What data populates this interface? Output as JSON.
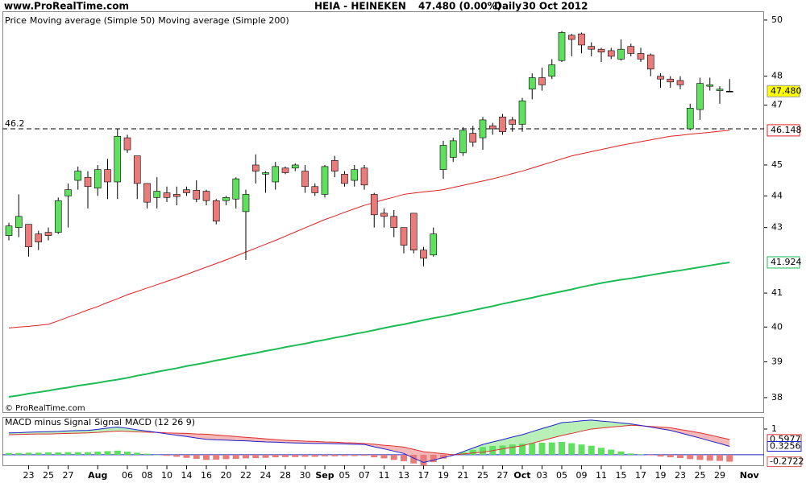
{
  "chart_data": [
    {
      "type": "candlestick",
      "site": "www.ProRealTime.com",
      "title": "HEIA - HEINEKEN",
      "last_quote": "47.480 (0.00%)",
      "period": "Daily",
      "date": "30 Oct 2012",
      "price_label": "Price",
      "copyright": "© ProRealTime.com",
      "categories": [
        null,
        null,
        "23",
        null,
        "25",
        null,
        "27",
        null,
        null,
        "Aug",
        null,
        null,
        "06",
        null,
        "08",
        null,
        "10",
        null,
        "14",
        null,
        "16",
        null,
        "20",
        null,
        "22",
        null,
        "24",
        null,
        "28",
        null,
        "30",
        null,
        "Sep",
        null,
        "05",
        null,
        "07",
        null,
        "11",
        null,
        "13",
        null,
        "17",
        null,
        "19",
        null,
        "21",
        null,
        "25",
        null,
        "27",
        null,
        "Oct",
        null,
        "03",
        null,
        "05",
        null,
        "09",
        null,
        "11",
        null,
        "15",
        null,
        "17",
        null,
        "19",
        null,
        "23",
        null,
        "25",
        null,
        "29",
        null
      ],
      "next_month_label": "Nov",
      "open": [
        42.75,
        43.0,
        43.1,
        42.8,
        42.85,
        42.85,
        44.0,
        44.5,
        44.6,
        44.25,
        44.85,
        44.45,
        45.9,
        45.3,
        44.4,
        43.95,
        44.1,
        44.05,
        44.2,
        44.18,
        44.15,
        43.85,
        43.85,
        43.9,
        43.5,
        45.0,
        44.7,
        44.45,
        44.9,
        44.9,
        44.8,
        44.3,
        44.05,
        45.15,
        44.7,
        44.5,
        44.9,
        44.05,
        43.45,
        43.35,
        43.0,
        43.45,
        42.3,
        42.15,
        44.85,
        45.25,
        45.4,
        46.05,
        45.9,
        46.3,
        46.6,
        46.5,
        46.35,
        47.55,
        47.95,
        48.0,
        48.55,
        49.45,
        49.5,
        49.05,
        48.95,
        48.9,
        48.6,
        49.05,
        48.8,
        48.75,
        48.0,
        47.9,
        47.85,
        46.2,
        46.85,
        47.65,
        47.5,
        47.48
      ],
      "high": [
        43.15,
        44.05,
        43.1,
        42.9,
        43.0,
        43.95,
        44.4,
        44.95,
        44.8,
        45.0,
        45.2,
        46.2,
        46.0,
        45.3,
        44.4,
        44.6,
        44.3,
        44.3,
        44.3,
        44.5,
        44.2,
        43.9,
        44.0,
        44.6,
        44.2,
        45.35,
        44.8,
        45.1,
        44.95,
        45.05,
        45.0,
        44.4,
        45.0,
        45.3,
        44.8,
        45.0,
        45.0,
        44.1,
        43.6,
        43.55,
        43.0,
        43.45,
        42.4,
        43.0,
        45.8,
        45.9,
        46.25,
        46.3,
        46.6,
        46.4,
        46.7,
        46.6,
        47.25,
        48.1,
        48.3,
        48.6,
        49.6,
        49.5,
        49.55,
        49.2,
        49.0,
        49.0,
        49.3,
        49.15,
        49.0,
        48.8,
        48.1,
        48.0,
        48.0,
        47.05,
        47.95,
        47.95,
        47.65,
        47.9
      ],
      "low": [
        42.6,
        42.7,
        42.1,
        42.3,
        42.6,
        42.8,
        43.0,
        44.2,
        43.6,
        44.0,
        43.9,
        43.9,
        45.4,
        43.9,
        43.6,
        43.6,
        43.8,
        43.7,
        44.0,
        43.8,
        43.7,
        43.1,
        43.7,
        43.6,
        42.0,
        44.4,
        44.1,
        44.2,
        44.7,
        44.8,
        44.1,
        44.0,
        43.95,
        44.6,
        44.3,
        44.3,
        44.2,
        43.0,
        43.0,
        42.7,
        42.2,
        42.2,
        41.8,
        42.1,
        44.55,
        45.1,
        45.3,
        45.6,
        45.5,
        46.0,
        46.0,
        46.1,
        46.1,
        47.2,
        47.5,
        47.9,
        48.5,
        48.7,
        48.8,
        48.7,
        48.5,
        48.6,
        48.55,
        48.7,
        48.5,
        48.0,
        47.6,
        47.6,
        47.55,
        46.15,
        46.5,
        47.5,
        47.05,
        47.45
      ],
      "close": [
        43.05,
        43.35,
        42.4,
        42.55,
        42.75,
        43.85,
        44.2,
        44.8,
        44.3,
        44.85,
        44.45,
        45.95,
        45.5,
        44.4,
        43.8,
        44.15,
        43.95,
        43.98,
        44.1,
        43.9,
        43.85,
        43.2,
        43.95,
        44.55,
        44.05,
        44.8,
        44.75,
        44.95,
        44.75,
        45.0,
        44.3,
        44.1,
        44.95,
        44.8,
        44.4,
        44.85,
        44.35,
        43.4,
        43.35,
        43.0,
        42.45,
        42.3,
        42.05,
        42.8,
        45.65,
        45.8,
        46.15,
        45.75,
        46.5,
        46.2,
        46.1,
        46.35,
        47.15,
        47.95,
        47.7,
        48.4,
        49.55,
        49.3,
        49.1,
        48.95,
        48.85,
        48.7,
        48.95,
        48.8,
        48.6,
        48.25,
        47.9,
        47.8,
        47.7,
        46.9,
        47.75,
        47.7,
        47.55,
        47.48
      ],
      "last_value_label": "47.480",
      "up_color": "#5fe05f",
      "down_color": "#ea7b7b",
      "last_tag_color": "#ffff00",
      "series": [
        {
          "name": "Moving average (Simple 50)",
          "color": "#e02020",
          "values": [
            39.97,
            40.0,
            40.02,
            40.05,
            40.08,
            40.18,
            40.29,
            40.39,
            40.5,
            40.6,
            40.72,
            40.83,
            40.95,
            41.05,
            41.15,
            41.25,
            41.35,
            41.45,
            41.56,
            41.67,
            41.78,
            41.89,
            42.0,
            42.12,
            42.24,
            42.36,
            42.48,
            42.6,
            42.73,
            42.86,
            42.99,
            43.12,
            43.25,
            43.36,
            43.48,
            43.59,
            43.7,
            43.79,
            43.88,
            43.96,
            44.05,
            44.09,
            44.13,
            44.16,
            44.2,
            44.27,
            44.34,
            44.41,
            44.48,
            44.55,
            44.63,
            44.72,
            44.8,
            44.9,
            45.0,
            45.1,
            45.2,
            45.3,
            45.37,
            45.44,
            45.51,
            45.58,
            45.65,
            45.71,
            45.77,
            45.83,
            45.89,
            45.95,
            45.98,
            46.02,
            46.05,
            46.08,
            46.12,
            46.148
          ]
        },
        {
          "name": "Moving average (Simple 200)",
          "color": "#1cbb55",
          "values": [
            38.02,
            38.06,
            38.11,
            38.15,
            38.19,
            38.24,
            38.28,
            38.33,
            38.37,
            38.41,
            38.46,
            38.5,
            38.55,
            38.61,
            38.66,
            38.72,
            38.77,
            38.82,
            38.88,
            38.93,
            38.98,
            39.04,
            39.09,
            39.15,
            39.2,
            39.25,
            39.31,
            39.36,
            39.42,
            39.47,
            39.52,
            39.58,
            39.63,
            39.69,
            39.74,
            39.8,
            39.85,
            39.91,
            39.97,
            40.03,
            40.08,
            40.14,
            40.2,
            40.26,
            40.31,
            40.37,
            40.43,
            40.49,
            40.55,
            40.61,
            40.68,
            40.74,
            40.8,
            40.86,
            40.93,
            40.99,
            41.05,
            41.11,
            41.18,
            41.24,
            41.3,
            41.35,
            41.4,
            41.44,
            41.49,
            41.54,
            41.59,
            41.64,
            41.68,
            41.73,
            41.78,
            41.83,
            41.88,
            41.924
          ]
        }
      ],
      "hline": 46.2,
      "log_scale": true,
      "ylim": [
        37.6,
        50.32
      ],
      "yticks": [
        38,
        39,
        40,
        41,
        43,
        44,
        45,
        47,
        48,
        50
      ]
    },
    {
      "type": "macd",
      "up_color": "#5fe05f",
      "down_color": "#ea7b7b",
      "series": [
        {
          "name": "MACD minus Signal",
          "color": "#e05050",
          "values": [
            0.07,
            0.07,
            0.08,
            0.08,
            0.09,
            0.09,
            0.1,
            0.1,
            0.1,
            0.12,
            0.14,
            0.16,
            0.12,
            0.08,
            0.04,
            0.0,
            -0.04,
            -0.08,
            -0.12,
            -0.16,
            -0.2,
            -0.19,
            -0.17,
            -0.16,
            -0.14,
            -0.13,
            -0.12,
            -0.1,
            -0.09,
            -0.09,
            -0.08,
            -0.08,
            -0.06,
            -0.06,
            -0.05,
            -0.05,
            -0.04,
            -0.1,
            -0.14,
            -0.2,
            -0.25,
            -0.34,
            -0.42,
            -0.29,
            -0.15,
            -0.02,
            0.09,
            0.19,
            0.3,
            0.34,
            0.36,
            0.4,
            0.43,
            0.45,
            0.47,
            0.48,
            0.5,
            0.45,
            0.4,
            0.35,
            0.27,
            0.2,
            0.13,
            0.05,
            0.01,
            -0.02,
            -0.07,
            -0.1,
            -0.13,
            -0.17,
            -0.2,
            -0.23,
            -0.24,
            -0.2722
          ]
        },
        {
          "name": "Signal",
          "color": "#e03030",
          "values": [
            0.78,
            0.79,
            0.8,
            0.81,
            0.81,
            0.82,
            0.83,
            0.84,
            0.85,
            0.87,
            0.9,
            0.92,
            0.91,
            0.89,
            0.88,
            0.87,
            0.85,
            0.84,
            0.83,
            0.81,
            0.8,
            0.77,
            0.74,
            0.71,
            0.68,
            0.65,
            0.62,
            0.59,
            0.56,
            0.55,
            0.53,
            0.52,
            0.5,
            0.49,
            0.47,
            0.46,
            0.44,
            0.41,
            0.37,
            0.34,
            0.3,
            0.21,
            0.12,
            0.08,
            0.04,
            0.0,
            0.03,
            0.07,
            0.1,
            0.16,
            0.23,
            0.29,
            0.35,
            0.45,
            0.55,
            0.65,
            0.75,
            0.83,
            0.92,
            1.0,
            1.04,
            1.08,
            1.11,
            1.15,
            1.13,
            1.1,
            1.08,
            1.05,
            0.98,
            0.92,
            0.85,
            0.77,
            0.68,
            0.5977
          ]
        },
        {
          "name": "MACD (12 26 9)",
          "color": "#2020cc",
          "values": [
            0.85,
            0.86,
            0.88,
            0.89,
            0.9,
            0.91,
            0.93,
            0.94,
            0.95,
            0.99,
            1.04,
            1.08,
            1.03,
            0.97,
            0.92,
            0.87,
            0.81,
            0.76,
            0.71,
            0.65,
            0.6,
            0.58,
            0.57,
            0.55,
            0.54,
            0.52,
            0.5,
            0.49,
            0.47,
            0.46,
            0.45,
            0.44,
            0.44,
            0.43,
            0.42,
            0.41,
            0.4,
            0.31,
            0.23,
            0.14,
            0.05,
            -0.13,
            -0.3,
            -0.21,
            -0.11,
            -0.02,
            0.12,
            0.26,
            0.4,
            0.5,
            0.59,
            0.69,
            0.78,
            0.9,
            1.02,
            1.13,
            1.25,
            1.28,
            1.32,
            1.35,
            1.31,
            1.28,
            1.24,
            1.2,
            1.14,
            1.08,
            1.01,
            0.95,
            0.85,
            0.75,
            0.65,
            0.54,
            0.44,
            0.3256
          ]
        }
      ],
      "ylim": [
        -0.41,
        1.47
      ],
      "yticks": [
        1
      ]
    }
  ]
}
